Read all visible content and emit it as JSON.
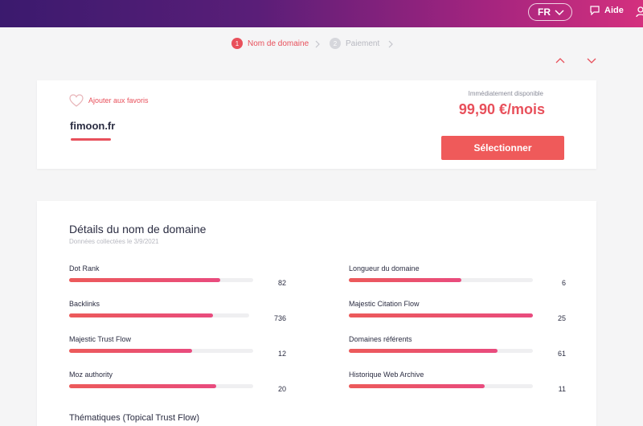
{
  "header": {
    "language": "FR",
    "help_label": "Aide",
    "icons": [
      "chevron-down-icon",
      "chat-bubble-icon",
      "user-icon"
    ]
  },
  "steps": [
    {
      "number": "1",
      "label": "Nom de domaine",
      "active": true
    },
    {
      "number": "2",
      "label": "Paiement",
      "active": false
    }
  ],
  "offer": {
    "favorite_label": "Ajouter aux favoris",
    "domain": "fimoon.fr",
    "availability": "Immédiatement disponible",
    "price": "99,90 €/mois",
    "select_label": "Sélectionner"
  },
  "details": {
    "title": "Détails du nom de domaine",
    "subtitle": "Données collectées le 3/9/2021",
    "metrics_left": [
      {
        "label": "Dot Rank",
        "value": "82",
        "fill": 0.82
      },
      {
        "label": "Backlinks",
        "value": "736",
        "fill": 0.8
      },
      {
        "label": "Majestic Trust Flow",
        "value": "12",
        "fill": 0.67
      },
      {
        "label": "Moz authority",
        "value": "20",
        "fill": 0.8
      }
    ],
    "metrics_right": [
      {
        "label": "Longueur du domaine",
        "value": "6",
        "fill": 0.61
      },
      {
        "label": "Majestic Citation Flow",
        "value": "25",
        "fill": 1.0
      },
      {
        "label": "Domaines référents",
        "value": "61",
        "fill": 0.81
      },
      {
        "label": "Historique Web Archive",
        "value": "11",
        "fill": 0.74
      }
    ],
    "themes_title": "Thématiques (Topical Trust Flow)"
  },
  "colors": {
    "accent": "#e8505b",
    "button": "#ef5a5a",
    "header_start": "#3b1a6e",
    "header_end": "#d4307e"
  }
}
